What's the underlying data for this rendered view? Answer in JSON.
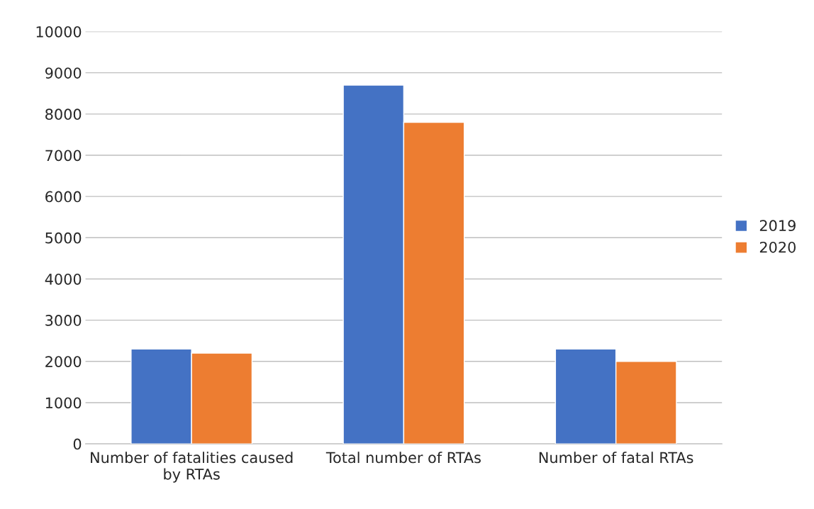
{
  "chart_data": {
    "type": "bar",
    "categories": [
      "Number of fatalities caused\nby RTAs",
      "Total number of RTAs",
      "Number of fatal RTAs"
    ],
    "series": [
      {
        "name": "2019",
        "color": "#4472c4",
        "values": [
          2300,
          8700,
          2300
        ]
      },
      {
        "name": "2020",
        "color": "#ed7d31",
        "values": [
          2200,
          7800,
          2000
        ]
      }
    ],
    "ylim": [
      0,
      10000
    ],
    "yticks": [
      0,
      1000,
      2000,
      3000,
      4000,
      5000,
      6000,
      7000,
      8000,
      9000,
      10000
    ],
    "grid": "y",
    "legend": "right"
  }
}
